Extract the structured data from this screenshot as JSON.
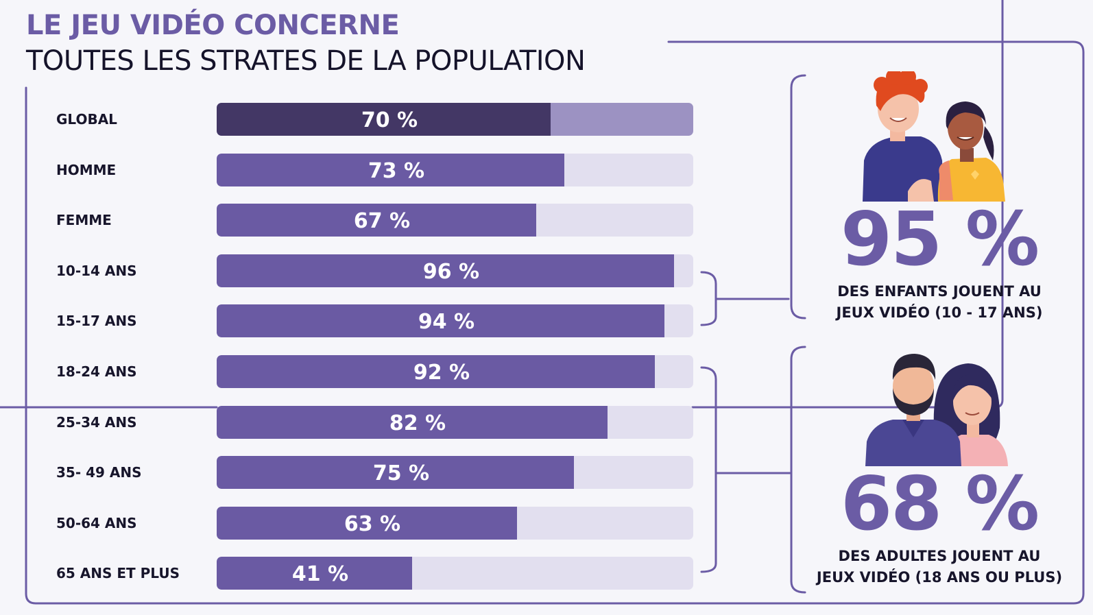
{
  "header": {
    "title_line1": "LE JEU VIDÉO CONCERNE",
    "title_line2": "TOUTES LES STRATES DE LA POPULATION"
  },
  "chart_data": {
    "type": "bar",
    "orientation": "horizontal",
    "title": "LE JEU VIDÉO CONCERNE TOUTES LES STRATES DE LA POPULATION",
    "categories": [
      "GLOBAL",
      "HOMME",
      "FEMME",
      "10-14 ANS",
      "15-17 ANS",
      "18-24 ANS",
      "25-34 ANS",
      "35- 49 ANS",
      "50-64 ANS",
      "65 ANS ET PLUS"
    ],
    "values": [
      70,
      73,
      67,
      96,
      94,
      92,
      82,
      75,
      63,
      41
    ],
    "labels": [
      "70 %",
      "73 %",
      "67 %",
      "96 %",
      "94 %",
      "92 %",
      "82 %",
      "75 %",
      "63 %",
      "41 %"
    ],
    "xlim": [
      0,
      100
    ],
    "unit": "%",
    "grid": false
  },
  "callouts": [
    {
      "value": "95 %",
      "line1": "DES ENFANTS JOUENT AU",
      "line2": "JEUX VIDÉO (10 - 17 ANS)"
    },
    {
      "value": "68 %",
      "line1": "DES ADULTES JOUENT AU",
      "line2": "JEUX VIDÉO (18 ANS OU PLUS)"
    }
  ],
  "colors": {
    "accent": "#6b5ca5",
    "bar": "#6a5aa3",
    "bar_highlight": "#433765",
    "track": "#e2dfef",
    "track_highlight": "#9c92c2",
    "frame": "#6b5ca5",
    "text": "#17152b"
  },
  "icons": {
    "kids": "kids-illustration",
    "adults": "adults-illustration"
  }
}
